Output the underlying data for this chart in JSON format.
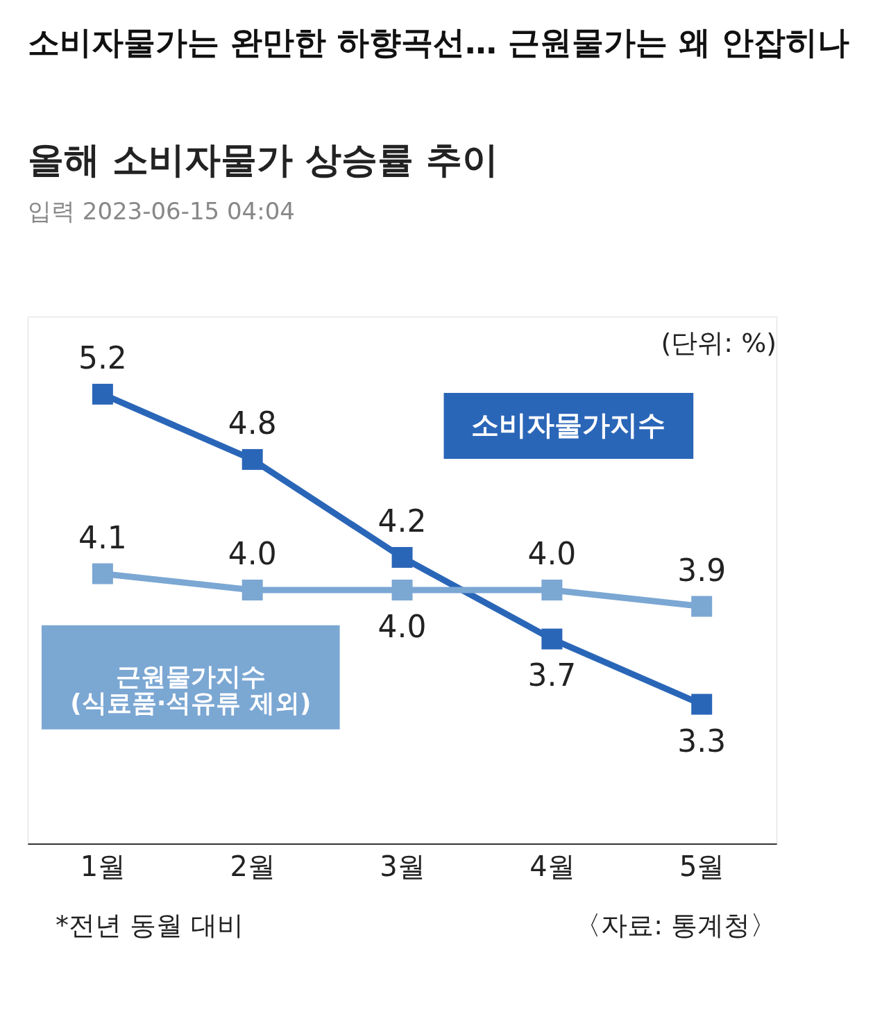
{
  "chart_data": {
    "type": "line",
    "title": "소비자물가는 완만한 하향곡선… 근원물가는 왜 안잡히나",
    "subtitle": "올해 소비자물가 상승률 추이",
    "categories": [
      "1월",
      "2월",
      "3월",
      "4월",
      "5월"
    ],
    "series": [
      {
        "name": "소비자물가지수",
        "color": "#2a66b8",
        "values": [
          5.2,
          4.8,
          4.2,
          3.7,
          3.3
        ],
        "value_labels": [
          "5.2",
          "4.8",
          "4.2",
          "3.7",
          "3.3"
        ]
      },
      {
        "name": "근원물가지수\n(식료품·석유류 제외)",
        "color": "#7ba7d3",
        "values": [
          4.1,
          4.0,
          4.0,
          4.0,
          3.9
        ],
        "value_labels": [
          "4.1",
          "4.0",
          "4.0",
          "4.0",
          "3.9"
        ]
      }
    ],
    "marker": "square",
    "line_style": "solid",
    "annotations": [
      "입력 2023-06-15 04:04",
      "(단위: %)",
      "*전년 동월 대비",
      "〈자료: 통계청〉"
    ]
  }
}
